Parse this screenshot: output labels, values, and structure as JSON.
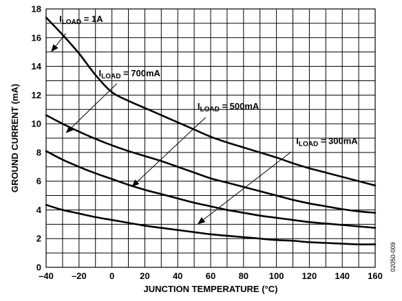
{
  "chart_data": {
    "type": "line",
    "title": "",
    "xlabel": "JUNCTION TEMPERATURE (°C)",
    "ylabel": "GROUND CURRENT (mA)",
    "xlim": [
      -40,
      160
    ],
    "ylim": [
      0,
      18
    ],
    "x_ticks": [
      -40,
      -20,
      0,
      20,
      40,
      60,
      80,
      100,
      120,
      140,
      160
    ],
    "y_ticks": [
      0,
      2,
      4,
      6,
      8,
      10,
      12,
      14,
      16,
      18
    ],
    "x_tick_labels": [
      "–40",
      "–20",
      "0",
      "20",
      "40",
      "60",
      "80",
      "100",
      "120",
      "140",
      "160"
    ],
    "y_tick_labels": [
      "0",
      "2",
      "4",
      "6",
      "8",
      "10",
      "12",
      "14",
      "16",
      "18"
    ],
    "grid": true,
    "series": [
      {
        "name": "ILOAD = 1A",
        "label_main": "I",
        "label_sub": "LOAD",
        "label_value": " = 1A",
        "label_at": [
          -32,
          17.1
        ],
        "arrow_from": [
          -28,
          16.3
        ],
        "arrow_to": [
          -37,
          15.0
        ],
        "x": [
          -40,
          -30,
          -20,
          -10,
          0,
          10,
          20,
          30,
          40,
          50,
          60,
          70,
          80,
          90,
          100,
          110,
          120,
          130,
          140,
          150,
          160
        ],
        "y": [
          17.4,
          16.2,
          14.9,
          13.4,
          12.2,
          11.6,
          11.1,
          10.6,
          10.1,
          9.6,
          9.1,
          8.7,
          8.35,
          8.0,
          7.65,
          7.25,
          6.9,
          6.6,
          6.3,
          6.0,
          5.7
        ]
      },
      {
        "name": "ILOAD = 700mA",
        "label_main": "I",
        "label_sub": "LOAD",
        "label_value": " = 700mA",
        "label_at": [
          -8,
          13.3
        ],
        "arrow_from": [
          3,
          12.8
        ],
        "arrow_to": [
          -28,
          9.35
        ],
        "x": [
          -40,
          -30,
          -20,
          -10,
          0,
          10,
          20,
          30,
          40,
          50,
          60,
          70,
          80,
          90,
          100,
          110,
          120,
          130,
          140,
          150,
          160
        ],
        "y": [
          10.6,
          10.0,
          9.45,
          8.95,
          8.5,
          8.1,
          7.75,
          7.4,
          7.0,
          6.6,
          6.2,
          5.9,
          5.6,
          5.3,
          5.0,
          4.7,
          4.45,
          4.25,
          4.05,
          3.9,
          3.8
        ]
      },
      {
        "name": "ILOAD = 500mA",
        "label_main": "I",
        "label_sub": "LOAD",
        "label_value": " = 500mA",
        "label_at": [
          52,
          11.0
        ],
        "arrow_from": [
          57,
          10.45
        ],
        "arrow_to": [
          12,
          5.6
        ],
        "x": [
          -40,
          -30,
          -20,
          -10,
          0,
          10,
          20,
          30,
          40,
          50,
          60,
          70,
          80,
          90,
          100,
          110,
          120,
          130,
          140,
          150,
          160
        ],
        "y": [
          8.1,
          7.5,
          7.0,
          6.55,
          6.15,
          5.75,
          5.4,
          5.1,
          4.8,
          4.5,
          4.25,
          4.0,
          3.8,
          3.6,
          3.45,
          3.3,
          3.15,
          3.05,
          2.95,
          2.85,
          2.75
        ]
      },
      {
        "name": "ILOAD = 300mA",
        "label_main": "I",
        "label_sub": "LOAD",
        "label_value": " = 300mA",
        "label_at": [
          112,
          8.6
        ],
        "arrow_from": [
          109,
          8.05
        ],
        "arrow_to": [
          52,
          3.0
        ],
        "x": [
          -40,
          -30,
          -20,
          -10,
          0,
          10,
          20,
          30,
          40,
          50,
          60,
          70,
          80,
          90,
          100,
          110,
          120,
          130,
          140,
          150,
          160
        ],
        "y": [
          4.35,
          4.0,
          3.75,
          3.5,
          3.3,
          3.1,
          2.9,
          2.75,
          2.6,
          2.45,
          2.3,
          2.2,
          2.1,
          2.0,
          1.9,
          1.85,
          1.75,
          1.7,
          1.65,
          1.6,
          1.6
        ]
      }
    ]
  },
  "figure_code": "02050-009"
}
